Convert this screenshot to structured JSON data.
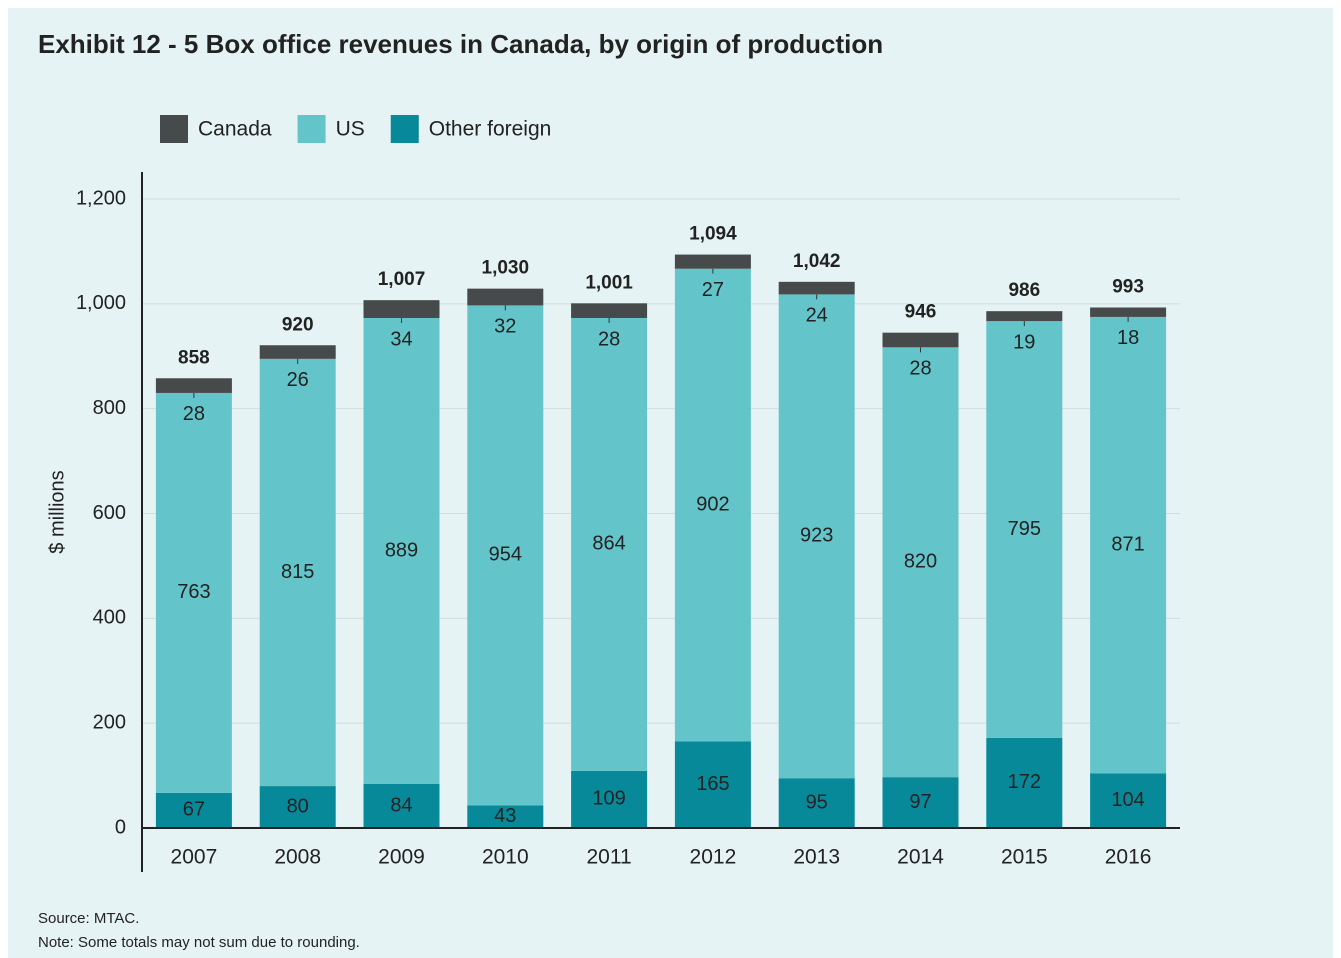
{
  "chart_data": {
    "type": "stacked_bar",
    "title": "Exhibit 12 - 5  Box office revenues in Canada, by origin of production",
    "y_label": "$ millions",
    "categories": [
      "2007",
      "2008",
      "2009",
      "2010",
      "2011",
      "2012",
      "2013",
      "2014",
      "2015",
      "2016"
    ],
    "series": [
      {
        "name": "Canada",
        "color": "#474a4b",
        "values": [
          28,
          26,
          34,
          32,
          28,
          27,
          24,
          28,
          19,
          18
        ]
      },
      {
        "name": "US",
        "color": "#63c5ca",
        "values": [
          763,
          815,
          889,
          954,
          864,
          902,
          923,
          820,
          795,
          871
        ]
      },
      {
        "name": "Other foreign",
        "color": "#08899a",
        "values": [
          67,
          80,
          84,
          43,
          109,
          165,
          95,
          97,
          172,
          104
        ]
      }
    ],
    "totals": [
      858,
      920,
      1007,
      1030,
      1001,
      1094,
      1042,
      946,
      986,
      993
    ],
    "total_labels": [
      "858",
      "920",
      "1,007",
      "1,030",
      "1,001",
      "1,094",
      "1,042",
      "946",
      "986",
      "993"
    ],
    "ylim": [
      0,
      1200
    ],
    "yticks": [
      0,
      200,
      400,
      600,
      800,
      {
        "value": 1000,
        "label": "1,000"
      },
      {
        "value": 1200,
        "label": "1,200"
      }
    ],
    "grid": true,
    "source": "Source: MTAC.",
    "note": "Note: Some totals may not sum due to rounding."
  }
}
